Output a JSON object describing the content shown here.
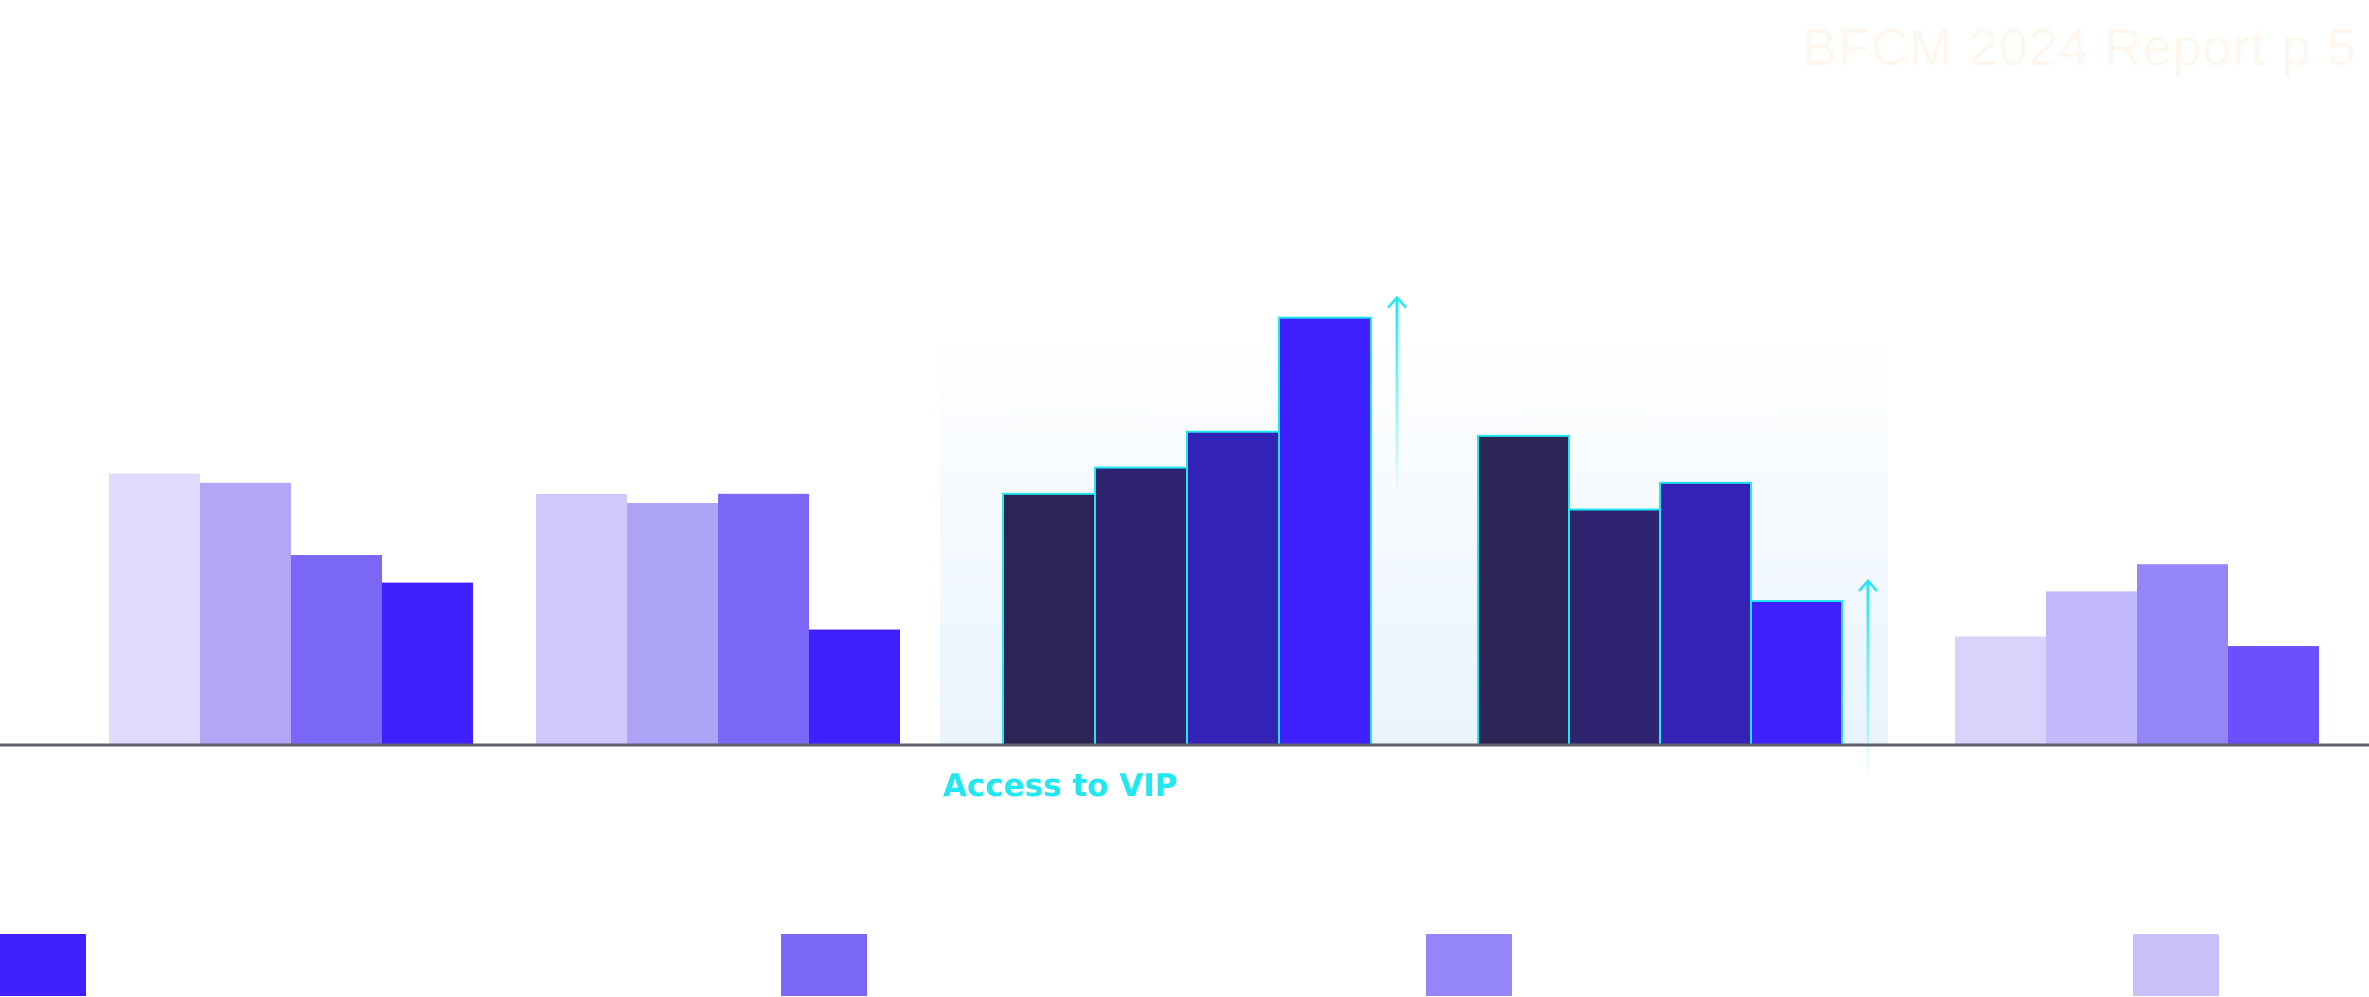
{
  "watermark": "BFCM 2024 Report p 5",
  "highlight_label": "Access to VIP",
  "colors": {
    "axis": "#5f5f6b",
    "highlight_outline": "#22e6f0",
    "legend": [
      "#4120ff",
      "#7b67f6",
      "#9486f6",
      "#c9c0fa"
    ]
  },
  "legend": [
    {
      "color": "#4120ff"
    },
    {
      "color": "#7b67f6"
    },
    {
      "color": "#9486f6"
    },
    {
      "color": "#c9c0fa"
    }
  ],
  "chart_data": {
    "type": "bar",
    "grid": false,
    "ylim": [
      0,
      100
    ],
    "groups": [
      {
        "values": [
          59.0,
          57.0,
          41.3,
          35.3
        ],
        "colors": [
          "#e1dcfd",
          "#b1a7f6",
          "#7b67f6",
          "#4120ff"
        ],
        "highlight": false
      },
      {
        "values": [
          54.6,
          52.6,
          54.6,
          25.1
        ],
        "colors": [
          "#cfc8fb",
          "#aca2f6",
          "#7b67f6",
          "#4120ff"
        ],
        "highlight": false
      },
      {
        "values": [
          54.6,
          60.3,
          68.1,
          92.9
        ],
        "colors": [
          "#2d2456",
          "#2e2470",
          "#3422b6",
          "#4120ff"
        ],
        "highlight": true,
        "arrow_on": 3
      },
      {
        "values": [
          67.2,
          51.2,
          57.0,
          31.3
        ],
        "colors": [
          "#2d2456",
          "#2e2470",
          "#3422b6",
          "#4120ff"
        ],
        "highlight": true,
        "arrow_on": 3
      },
      {
        "values": [
          23.6,
          33.4,
          39.3,
          21.5
        ],
        "colors": [
          "#d9d3fc",
          "#c2b9fa",
          "#9486f6",
          "#6a4ffa"
        ],
        "highlight": false
      }
    ]
  }
}
